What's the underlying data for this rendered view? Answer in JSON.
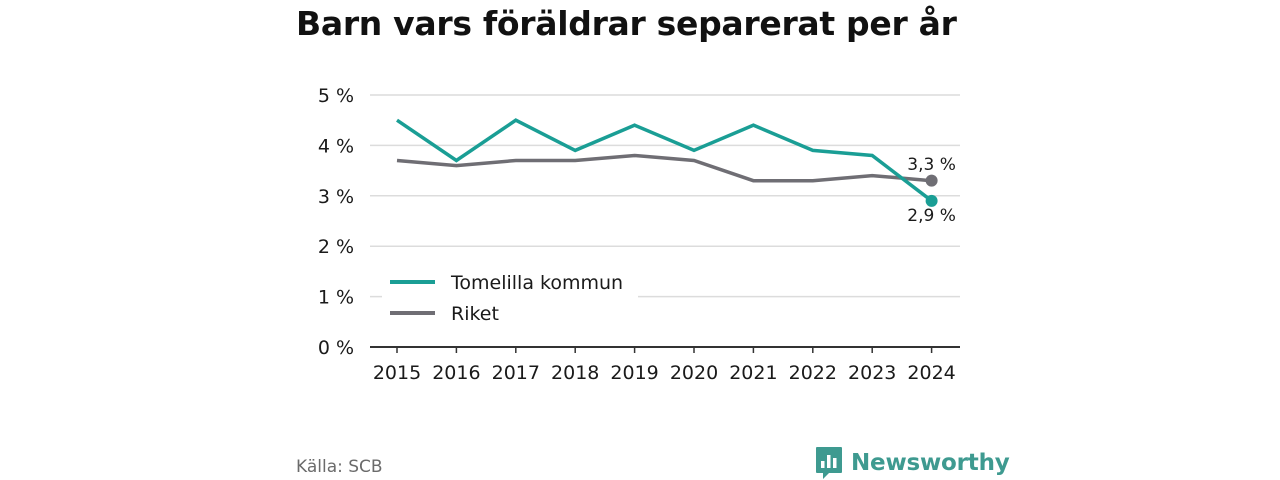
{
  "title": "Barn vars föräldrar separerat per år",
  "source": "Källa: SCB",
  "brand": {
    "name": "Newsworthy",
    "icon": "newsworthy-logo-icon",
    "color": "#3e9a90"
  },
  "chart_data": {
    "type": "line",
    "x": [
      "2015",
      "2016",
      "2017",
      "2018",
      "2019",
      "2020",
      "2021",
      "2022",
      "2023",
      "2024"
    ],
    "series": [
      {
        "name": "Tomelilla kommun",
        "color": "#1a9e95",
        "values": [
          4.5,
          3.7,
          4.5,
          3.9,
          4.4,
          3.9,
          4.4,
          3.9,
          3.8,
          2.9
        ]
      },
      {
        "name": "Riket",
        "color": "#6f6e74",
        "values": [
          3.7,
          3.6,
          3.7,
          3.7,
          3.8,
          3.7,
          3.3,
          3.3,
          3.4,
          3.3
        ]
      }
    ],
    "ylim": [
      0,
      5
    ],
    "yticks": [
      "0 %",
      "1 %",
      "2 %",
      "3 %",
      "4 %",
      "5 %"
    ],
    "end_labels": [
      "2,9 %",
      "3,3 %"
    ],
    "grid": true,
    "legend_position": "bottom-left"
  }
}
